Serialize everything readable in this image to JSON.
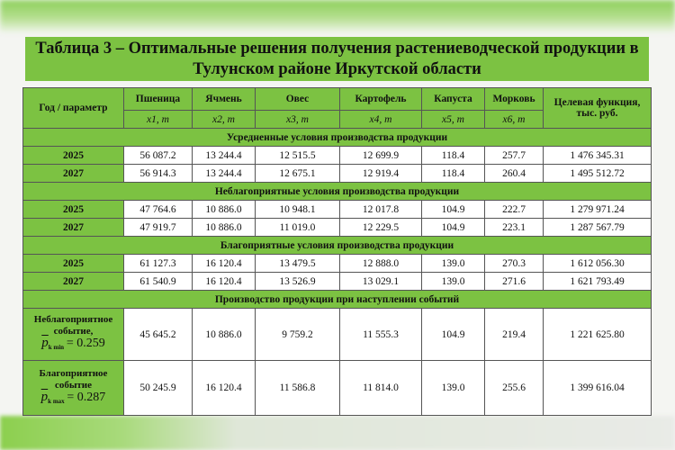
{
  "title": "Таблица 3 – Оптимальные решения получения растениеводческой продукции в Тулунском районе Иркутской области",
  "header": {
    "param": "Год / параметр",
    "crops": [
      {
        "name": "Пшеница",
        "var": "x1, т"
      },
      {
        "name": "Ячмень",
        "var": "x2, т"
      },
      {
        "name": "Овес",
        "var": "x3, т"
      },
      {
        "name": "Картофель",
        "var": "x4, т"
      },
      {
        "name": "Капуста",
        "var": "x5, т"
      },
      {
        "name": "Морковь",
        "var": "x6, т"
      }
    ],
    "objective": "Целевая функция, тыс. руб."
  },
  "sections": [
    {
      "title": "Усредненные условия производства продукции",
      "rows": [
        {
          "year": "2025",
          "values": [
            "56 087.2",
            "13 244.4",
            "12 515.5",
            "12 699.9",
            "118.4",
            "257.7",
            "1 476 345.31"
          ]
        },
        {
          "year": "2027",
          "values": [
            "56 914.3",
            "13 244.4",
            "12 675.1",
            "12 919.4",
            "118.4",
            "260.4",
            "1 495 512.72"
          ]
        }
      ]
    },
    {
      "title": "Неблагоприятные условия производства продукции",
      "rows": [
        {
          "year": "2025",
          "values": [
            "47 764.6",
            "10 886.0",
            "10 948.1",
            "12 017.8",
            "104.9",
            "222.7",
            "1 279 971.24"
          ]
        },
        {
          "year": "2027",
          "values": [
            "47 919.7",
            "10 886.0",
            "11 019.0",
            "12 229.5",
            "104.9",
            "223.1",
            "1 287 567.79"
          ]
        }
      ]
    },
    {
      "title": "Благоприятные условия производства продукции",
      "rows": [
        {
          "year": "2025",
          "values": [
            "61 127.3",
            "16 120.4",
            "13 479.5",
            "12 888.0",
            "139.0",
            "270.3",
            "1 612 056.30"
          ]
        },
        {
          "year": "2027",
          "values": [
            "61 540.9",
            "16 120.4",
            "13 526.9",
            "13 029.1",
            "139.0",
            "271.6",
            "1 621 793.49"
          ]
        }
      ]
    },
    {
      "title": "Производство продукции при наступлении событий",
      "rows": [
        {
          "label": "Неблагоприятное событие,",
          "p_sub": "k min",
          "p_val": "= 0.259",
          "values": [
            "45 645.2",
            "10 886.0",
            "9 759.2",
            "11 555.3",
            "104.9",
            "219.4",
            "1 221 625.80"
          ]
        },
        {
          "label": "Благоприятное событие",
          "p_sub": "k max",
          "p_val": "= 0.287",
          "values": [
            "50 245.9",
            "16 120.4",
            "11 586.8",
            "11 814.0",
            "139.0",
            "255.6",
            "1 399 616.04"
          ]
        }
      ]
    }
  ]
}
